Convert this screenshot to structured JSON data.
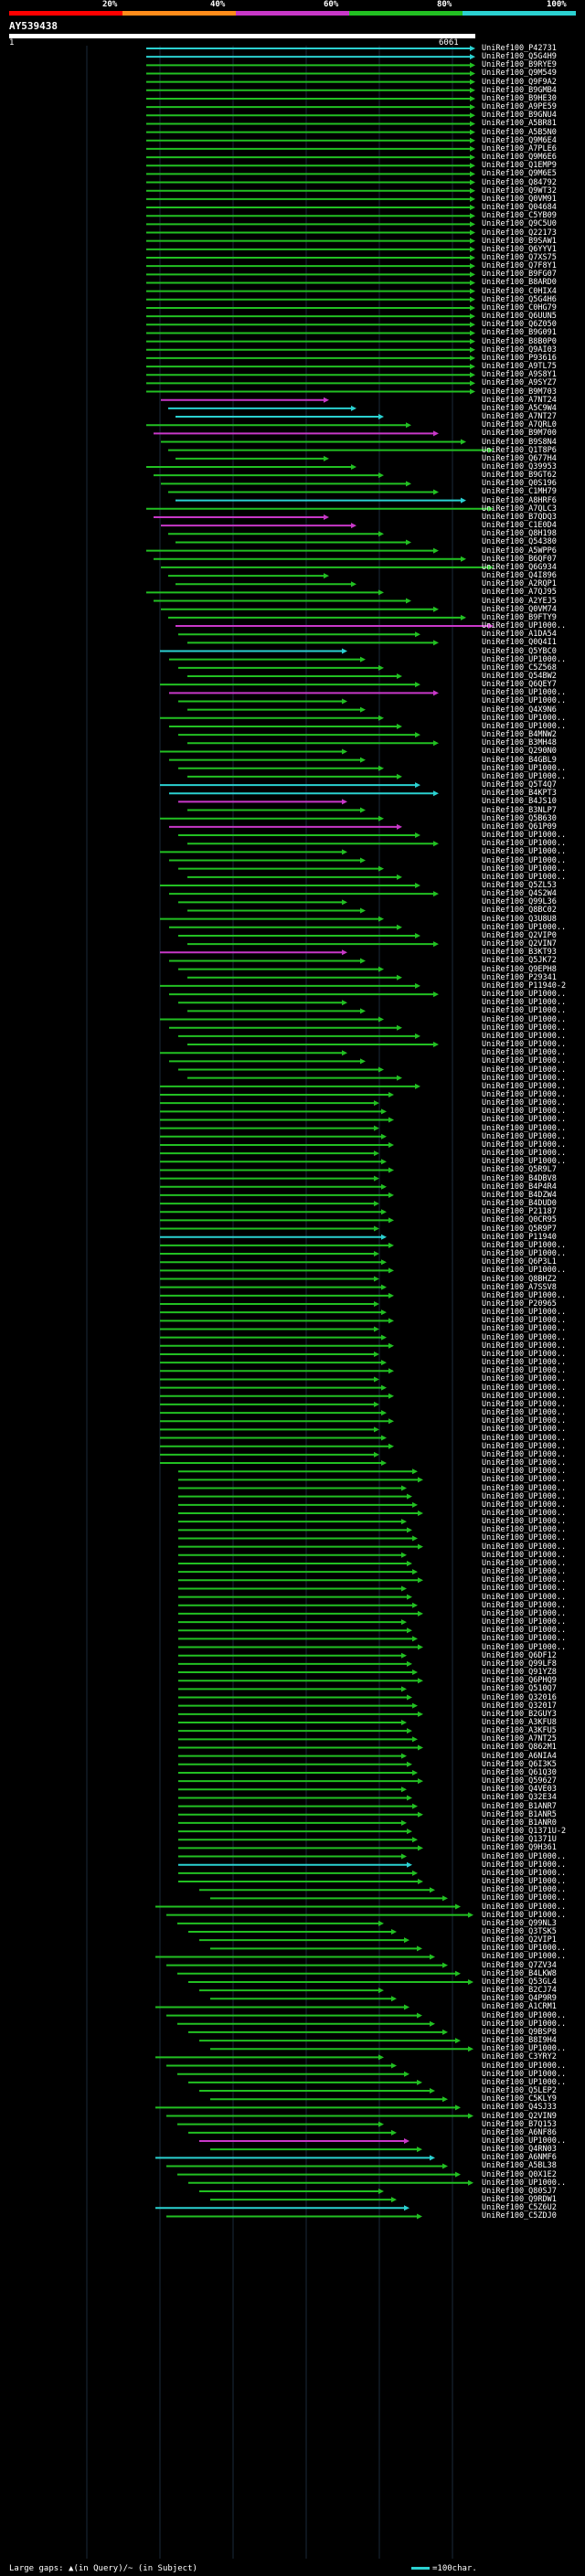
{
  "legend": {
    "ticks": [
      "20%",
      "40%",
      "60%",
      "80%",
      "100%"
    ],
    "colors": [
      "#ff0000",
      "#ff8c1a",
      "#c838c8",
      "#22c022",
      "#2bd1d1"
    ]
  },
  "query": {
    "name": "AY539438",
    "start": "1",
    "end": "6061"
  },
  "footer": {
    "large_gaps_label": "Large gaps: ▲(in Query)/~ (in Subject)",
    "scale_label": "=100char."
  },
  "hits": [
    "UniRef100_P42731",
    "UniRef100_Q5G4H9",
    "UniRef100_B9RYE9",
    "UniRef100_Q9M549",
    "UniRef100_Q9F9A2",
    "UniRef100_B9GMB4",
    "UniRef100_B9HE30",
    "UniRef100_A9PE59",
    "UniRef100_B9GNU4",
    "UniRef100_A5BR81",
    "UniRef100_A5B5N0",
    "UniRef100_Q9M6E4",
    "UniRef100_A7PLE6",
    "UniRef100_Q9M6E6",
    "UniRef100_Q1EMP9",
    "UniRef100_Q9M6E5",
    "UniRef100_Q84792",
    "UniRef100_Q9WT32",
    "UniRef100_Q0VM91",
    "UniRef100_Q04684",
    "UniRef100_C5YB09",
    "UniRef100_Q9C5U0",
    "UniRef100_Q22173",
    "UniRef100_B9SAW1",
    "UniRef100_Q6YYV1",
    "UniRef100_Q7XS75",
    "UniRef100_Q7F8Y1",
    "UniRef100_B9FG07",
    "UniRef100_B8ARD0",
    "UniRef100_C0HIX4",
    "UniRef100_Q5G4H6",
    "UniRef100_C0HG79",
    "UniRef100_Q6UUN5",
    "UniRef100_Q6Z050",
    "UniRef100_B9G091",
    "UniRef100_B8B0P0",
    "UniRef100_Q9AI03",
    "UniRef100_P93616",
    "UniRef100_A9TL75",
    "UniRef100_A9S8Y1",
    "UniRef100_A9SYZ7",
    "UniRef100_B9M703",
    "UniRef100_A7NT24",
    "UniRef100_A5C9W4",
    "UniRef100_A7NT27",
    "UniRef100_A7QRL0",
    "UniRef100_B9M700",
    "UniRef100_B9S8N4",
    "UniRef100_Q1T8P6",
    "UniRef100_Q677H4",
    "UniRef100_Q39953",
    "UniRef100_B9GT62",
    "UniRef100_Q0S196",
    "UniRef100_C1MH79",
    "UniRef100_A8HRF6",
    "UniRef100_A7QLC3",
    "UniRef100_B7QDQ3",
    "UniRef100_C1E0D4",
    "UniRef100_Q8H198",
    "UniRef100_Q54380",
    "UniRef100_A5WPP6",
    "UniRef100_B6QF07",
    "UniRef100_Q6G934",
    "UniRef100_Q4I896",
    "UniRef100_A2RQP1",
    "UniRef100_A7QJ95",
    "UniRef100_A2YEJ5",
    "UniRef100_Q0VM74",
    "UniRef100_B9FTY9",
    "UniRef100_UP1000..",
    "UniRef100_A1DA54",
    "UniRef100_Q0Q4I1",
    "UniRef100_Q5YBC0",
    "UniRef100_UP1000..",
    "UniRef100_C5Z568",
    "UniRef100_Q54BW2",
    "UniRef100_Q6QEY7",
    "UniRef100_UP1000..",
    "UniRef100_UP1000..",
    "UniRef100_Q4X9N6",
    "UniRef100_UP1000..",
    "UniRef100_UP1000..",
    "UniRef100_B4MNW2",
    "UniRef100_B3MH48",
    "UniRef100_Q290N0",
    "UniRef100_B4GBL9",
    "UniRef100_UP1000..",
    "UniRef100_UP1000..",
    "UniRef100_Q5T4Q7",
    "UniRef100_B4KPT3",
    "UniRef100_B4JS10",
    "UniRef100_B3NLP7",
    "UniRef100_Q5B630",
    "UniRef100_Q61P09",
    "UniRef100_UP1000..",
    "UniRef100_UP1000..",
    "UniRef100_UP1000..",
    "UniRef100_UP1000..",
    "UniRef100_UP1000..",
    "UniRef100_UP1000..",
    "UniRef100_Q5ZL53",
    "UniRef100_Q4S2W4",
    "UniRef100_Q99L36",
    "UniRef100_Q8BC02",
    "UniRef100_Q3U8U8",
    "UniRef100_UP1000..",
    "UniRef100_Q2VIP0",
    "UniRef100_Q2VIN7",
    "UniRef100_B3KT93",
    "UniRef100_Q5JK72",
    "UniRef100_Q9EPH8",
    "UniRef100_P29341",
    "UniRef100_P11940-2",
    "UniRef100_UP1000..",
    "UniRef100_UP1000..",
    "UniRef100_UP1000..",
    "UniRef100_UP1000..",
    "UniRef100_UP1000..",
    "UniRef100_UP1000..",
    "UniRef100_UP1000..",
    "UniRef100_UP1000..",
    "UniRef100_UP1000..",
    "UniRef100_UP1000..",
    "UniRef100_UP1000..",
    "UniRef100_UP1000..",
    "UniRef100_UP1000..",
    "UniRef100_UP1000..",
    "UniRef100_UP1000..",
    "UniRef100_UP1000..",
    "UniRef100_UP1000..",
    "UniRef100_UP1000..",
    "UniRef100_UP1000..",
    "UniRef100_UP1000..",
    "UniRef100_UP1000..",
    "UniRef100_Q5R9L7",
    "UniRef100_B4DBV8",
    "UniRef100_B4P4R4",
    "UniRef100_B4DZW4",
    "UniRef100_B4DUD0",
    "UniRef100_P21187",
    "UniRef100_Q0CR95",
    "UniRef100_Q5R9P7",
    "UniRef100_P11940",
    "UniRef100_UP1000..",
    "UniRef100_UP1000..",
    "UniRef100_Q6P3L1",
    "UniRef100_UP1000..",
    "UniRef100_Q8BHZ2",
    "UniRef100_A7SSV8",
    "UniRef100_UP1000..",
    "UniRef100_P20965",
    "UniRef100_UP1000..",
    "UniRef100_UP1000..",
    "UniRef100_UP1000..",
    "UniRef100_UP1000..",
    "UniRef100_UP1000..",
    "UniRef100_UP1000..",
    "UniRef100_UP1000..",
    "UniRef100_UP1000..",
    "UniRef100_UP1000..",
    "UniRef100_UP1000..",
    "UniRef100_UP1000..",
    "UniRef100_UP1000..",
    "UniRef100_UP1000..",
    "UniRef100_UP1000..",
    "UniRef100_UP1000..",
    "UniRef100_UP1000..",
    "UniRef100_UP1000..",
    "UniRef100_UP1000..",
    "UniRef100_UP1000..",
    "UniRef100_UP1000..",
    "UniRef100_UP1000..",
    "UniRef100_UP1000..",
    "UniRef100_UP1000..",
    "UniRef100_UP1000..",
    "UniRef100_UP1000..",
    "UniRef100_UP1000..",
    "UniRef100_UP1000..",
    "UniRef100_UP1000..",
    "UniRef100_UP1000..",
    "UniRef100_UP1000..",
    "UniRef100_UP1000..",
    "UniRef100_UP1000..",
    "UniRef100_UP1000..",
    "UniRef100_UP1000..",
    "UniRef100_UP1000..",
    "UniRef100_UP1000..",
    "UniRef100_UP1000..",
    "UniRef100_UP1000..",
    "UniRef100_UP1000..",
    "UniRef100_UP1000..",
    "UniRef100_UP1000..",
    "UniRef100_Q6DF12",
    "UniRef100_Q99LF8",
    "UniRef100_Q91YZ8",
    "UniRef100_Q6PHQ9",
    "UniRef100_Q510Q7",
    "UniRef100_Q32016",
    "UniRef100_Q32017",
    "UniRef100_B2GUY3",
    "UniRef100_A3KFU8",
    "UniRef100_A3KFU5",
    "UniRef100_A7NT25",
    "UniRef100_Q862M1",
    "UniRef100_A6NIA4",
    "UniRef100_Q6I3K5",
    "UniRef100_Q61Q30",
    "UniRef100_Q59627",
    "UniRef100_Q4VE03",
    "UniRef100_Q32E34",
    "UniRef100_B1ANR7",
    "UniRef100_B1ANR5",
    "UniRef100_B1ANR0",
    "UniRef100_Q1371U-2",
    "UniRef100_Q1371U",
    "UniRef100_Q9H361",
    "UniRef100_UP1000..",
    "UniRef100_UP1000..",
    "UniRef100_UP1000..",
    "UniRef100_UP1000..",
    "UniRef100_UP1000..",
    "UniRef100_UP1000..",
    "UniRef100_UP1000..",
    "UniRef100_UP1000..",
    "UniRef100_Q99NL3",
    "UniRef100_Q3TSK5",
    "UniRef100_Q2VIP1",
    "UniRef100_UP1000..",
    "UniRef100_UP1000..",
    "UniRef100_Q7ZV34",
    "UniRef100_B4LKW8",
    "UniRef100_Q53GL4",
    "UniRef100_B2CJ74",
    "UniRef100_Q4P9R9",
    "UniRef100_A1CRM1",
    "UniRef100_UP1000..",
    "UniRef100_UP1000..",
    "UniRef100_Q9BSP8",
    "UniRef100_B8I9H4",
    "UniRef100_UP1000..",
    "UniRef100_C3YRY2",
    "UniRef100_UP1000..",
    "UniRef100_UP1000..",
    "UniRef100_UP1000..",
    "UniRef100_Q5LEP2",
    "UniRef100_C5KLY9",
    "UniRef100_Q4SJ33",
    "UniRef100_Q2VIN9",
    "UniRef100_B7Q153",
    "UniRef100_A6NF86",
    "UniRef100_UP1000..",
    "UniRef100_Q4RN03",
    "UniRef100_A6NMF6",
    "UniRef100_A5BL38",
    "UniRef100_Q0X1E2",
    "UniRef100_UP1000..",
    "UniRef100_Q80SJ7",
    "UniRef100_Q9RDW1",
    "UniRef100_C5Z6U2",
    "UniRef100_C5ZDJ0"
  ]
}
